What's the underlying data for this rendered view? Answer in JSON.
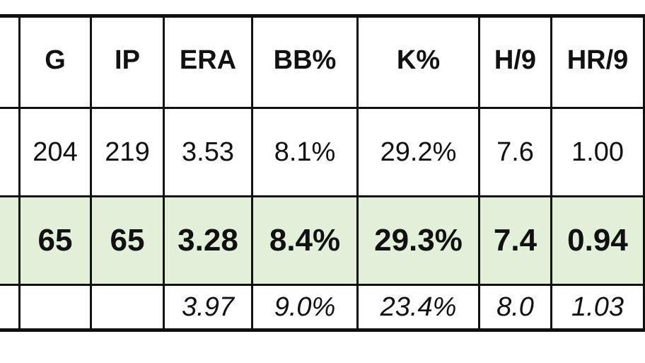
{
  "table": {
    "headers": [
      "G",
      "IP",
      "ERA",
      "BB%",
      "K%",
      "H/9",
      "HR/9"
    ],
    "career": [
      "204",
      "219",
      "3.53",
      "8.1%",
      "29.2%",
      "7.6",
      "1.00"
    ],
    "season": [
      "65",
      "65",
      "3.28",
      "8.4%",
      "29.3%",
      "7.4",
      "0.94"
    ],
    "league": [
      "",
      "",
      "3.97",
      "9.0%",
      "23.4%",
      "8.0",
      "1.03"
    ]
  },
  "colors": {
    "highlight_row": "#e3f0d9",
    "border": "#111111"
  }
}
